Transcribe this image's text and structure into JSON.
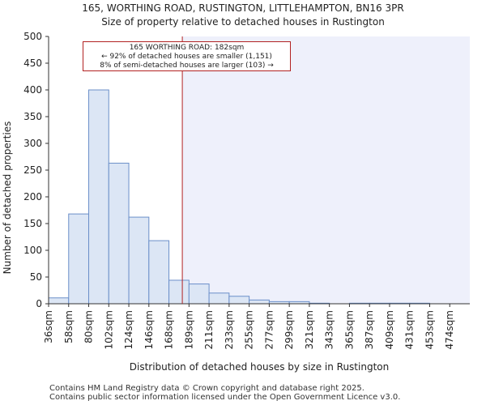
{
  "chart_data": {
    "type": "bar",
    "title": "165, WORTHING ROAD, RUSTINGTON, LITTLEHAMPTON, BN16 3PR",
    "subtitle": "Size of property relative to detached houses in Rustington",
    "xlabel": "Distribution of detached houses by size in Rustington",
    "ylabel": "Number of detached properties",
    "ylim": [
      0,
      500
    ],
    "yticks": [
      0,
      50,
      100,
      150,
      200,
      250,
      300,
      350,
      400,
      450,
      500
    ],
    "categories": [
      "36sqm",
      "58sqm",
      "80sqm",
      "102sqm",
      "124sqm",
      "146sqm",
      "168sqm",
      "189sqm",
      "211sqm",
      "233sqm",
      "255sqm",
      "277sqm",
      "299sqm",
      "321sqm",
      "343sqm",
      "365sqm",
      "387sqm",
      "409sqm",
      "431sqm",
      "453sqm",
      "474sqm"
    ],
    "values": [
      11,
      168,
      400,
      263,
      162,
      118,
      44,
      37,
      20,
      14,
      7,
      4,
      4,
      1,
      0,
      1,
      1,
      1,
      1,
      0,
      0
    ],
    "marker": {
      "value_sqm": 182
    },
    "grid": false,
    "colors": {
      "bar_fill": "#dce6f5",
      "bar_stroke": "#6b8fc9",
      "marker": "#b22222",
      "shade": "#eef0fb"
    },
    "annotation": {
      "line1": "165 WORTHING ROAD: 182sqm",
      "line2": "← 92% of detached houses are smaller (1,151)",
      "line3": "8% of semi-detached houses are larger (103) →"
    }
  },
  "footer": {
    "line1": "Contains HM Land Registry data © Crown copyright and database right 2025.",
    "line2": "Contains public sector information licensed under the Open Government Licence v3.0."
  }
}
